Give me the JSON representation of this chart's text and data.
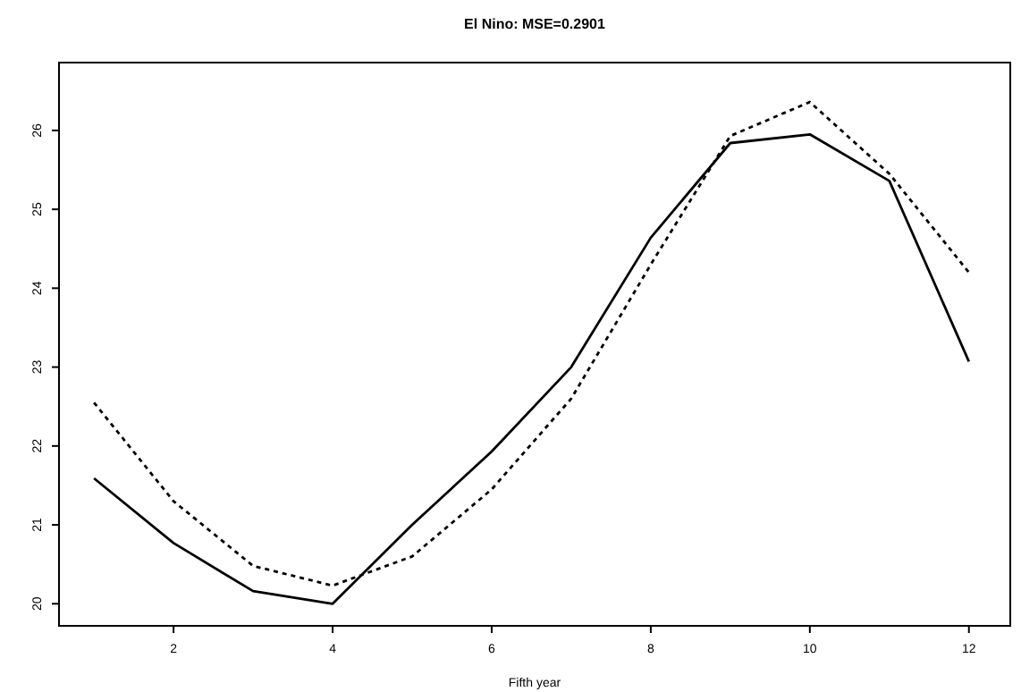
{
  "chart_data": {
    "type": "line",
    "title": "El Nino: MSE=0.2901",
    "xlabel": "Fifth year",
    "x": [
      1,
      2,
      3,
      4,
      5,
      6,
      7,
      8,
      9,
      10,
      11,
      12
    ],
    "series": [
      {
        "color": "#000000",
        "line_style": "solid",
        "values": [
          21.59,
          20.77,
          20.16,
          20.0,
          21.0,
          21.93,
          23.0,
          24.64,
          25.84,
          25.95,
          25.36,
          23.07
        ]
      },
      {
        "color": "#000000",
        "line_style": "dotted",
        "values": [
          22.55,
          21.3,
          20.48,
          20.23,
          20.6,
          21.45,
          22.6,
          24.3,
          25.93,
          26.36,
          25.45,
          24.2
        ]
      }
    ],
    "xlim": [
      0.56,
      12.52
    ],
    "ylim": [
      19.72,
      26.86
    ],
    "xticks": [
      2,
      4,
      6,
      8,
      10,
      12
    ],
    "yticks": [
      20,
      21,
      22,
      23,
      24,
      25,
      26
    ],
    "marker": "none"
  }
}
